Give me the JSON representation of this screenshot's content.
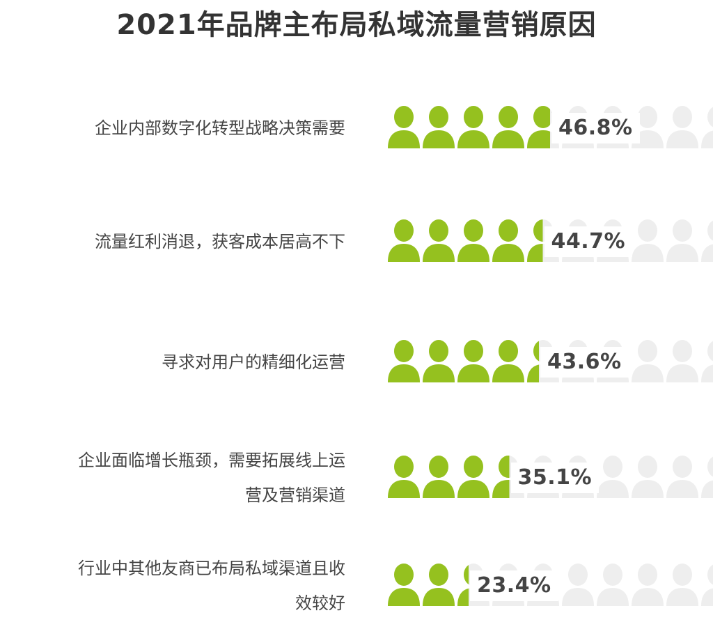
{
  "chart_data": {
    "type": "bar",
    "title": "2021年品牌主布局私域流量营销原因",
    "categories": [
      "企业内部数字化转型战略决策需要",
      "流量红利消退，获客成本居高不下",
      "寻求对用户的精细化运营",
      "企业面临增长瓶颈，需要拓展线上运\n营及营销渠道",
      "行业中其他友商已布局私域渠道且收\n效较好"
    ],
    "values": [
      46.8,
      44.7,
      43.6,
      35.1,
      23.4
    ],
    "value_labels": [
      "46.8%",
      "44.7%",
      "43.6%",
      "35.1%",
      "23.4%"
    ],
    "icons_per_row": 10,
    "max_value": 100,
    "unit": "%",
    "colors": {
      "filled": "#95c11f",
      "empty": "#eeeeee"
    },
    "icon": "person-icon"
  }
}
